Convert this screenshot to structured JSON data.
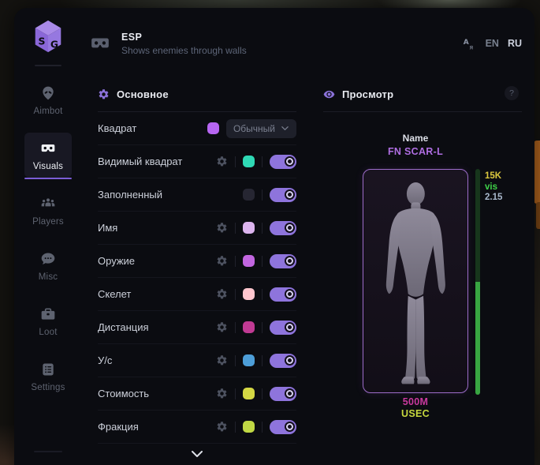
{
  "header": {
    "title": "ESP",
    "subtitle": "Shows enemies through walls",
    "icon": "goggles-icon",
    "lang": {
      "icon": "translate-icon",
      "options": [
        {
          "label": "EN",
          "active": false
        },
        {
          "label": "RU",
          "active": true
        }
      ]
    }
  },
  "logo": {
    "icon": "cube-logo",
    "letters": "SG"
  },
  "sidebar": {
    "items": [
      {
        "label": "Aimbot",
        "icon": "alien-icon",
        "active": false
      },
      {
        "label": "Visuals",
        "icon": "goggles-icon",
        "active": true
      },
      {
        "label": "Players",
        "icon": "players-icon",
        "active": false
      },
      {
        "label": "Misc",
        "icon": "chat-icon",
        "active": false
      },
      {
        "label": "Loot",
        "icon": "briefcase-icon",
        "active": false
      },
      {
        "label": "Settings",
        "icon": "list-icon",
        "active": false
      }
    ]
  },
  "settings": {
    "section_title": "Основное",
    "section_icon": "gear-icon",
    "rows": [
      {
        "label": "Квадрат",
        "swatch": "#b766f2",
        "gear": false,
        "control": "dropdown",
        "dropdown_value": "Обычный"
      },
      {
        "label": "Видимый квадрат",
        "swatch": "#2fd9b5",
        "gear": true,
        "control": "toggle",
        "toggle": true
      },
      {
        "label": "Заполненный",
        "swatch": "#262632",
        "gear": false,
        "control": "toggle",
        "toggle": true
      },
      {
        "label": "Имя",
        "swatch": "#dcb4ee",
        "gear": true,
        "control": "toggle",
        "toggle": true
      },
      {
        "label": "Оружие",
        "swatch": "#c266e0",
        "gear": true,
        "control": "toggle",
        "toggle": true
      },
      {
        "label": "Скелет",
        "swatch": "#ffc6ce",
        "gear": true,
        "control": "toggle",
        "toggle": true
      },
      {
        "label": "Дистанция",
        "swatch": "#c03a93",
        "gear": true,
        "control": "toggle",
        "toggle": true
      },
      {
        "label": "У/с",
        "swatch": "#4d9ed8",
        "gear": true,
        "control": "toggle",
        "toggle": true
      },
      {
        "label": "Стоимость",
        "swatch": "#d5d844",
        "gear": true,
        "control": "toggle",
        "toggle": true
      },
      {
        "label": "Фракция",
        "swatch": "#c0d844",
        "gear": true,
        "control": "toggle",
        "toggle": true
      }
    ],
    "more_icon": "chevron-down-icon"
  },
  "preview": {
    "section_title": "Просмотр",
    "section_icon": "eye-icon",
    "help_label": "?",
    "target_name_label": "Name",
    "target_weapon": "FN SCAR-L",
    "stats": [
      {
        "text": "15K",
        "color": "#dcc83e"
      },
      {
        "text": "vis",
        "color": "#3fd349"
      },
      {
        "text": "2.15",
        "color": "#a8b8cc"
      }
    ],
    "health_bar": {
      "top_color": "#17361c",
      "bottom_color": "#38a542"
    },
    "footer": [
      {
        "text": "500M",
        "color": "#c9399e"
      },
      {
        "text": "USEC",
        "color": "#c6d83e"
      }
    ]
  },
  "colors": {
    "accent": "#8e74dc"
  }
}
